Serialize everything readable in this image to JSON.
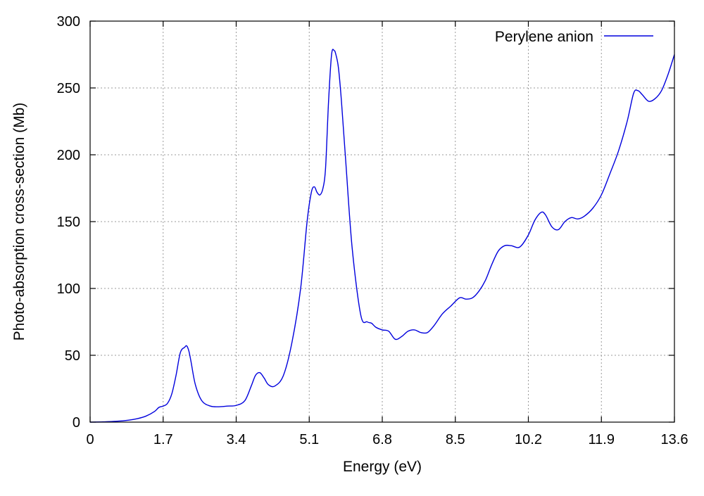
{
  "chart_data": {
    "type": "line",
    "title": "",
    "xlabel": "Energy (eV)",
    "ylabel": "Photo-absorption cross-section (Mb)",
    "xlim": [
      0,
      13.6
    ],
    "ylim": [
      0,
      300
    ],
    "xticks": [
      0,
      1.7,
      3.4,
      5.1,
      6.8,
      8.5,
      10.2,
      11.9,
      13.6
    ],
    "xtick_labels": [
      "0",
      "1.7",
      "3.4",
      "5.1",
      "6.8",
      "8.5",
      "10.2",
      "11.9",
      "13.6"
    ],
    "yticks": [
      0,
      50,
      100,
      150,
      200,
      250,
      300
    ],
    "ytick_labels": [
      "0",
      "50",
      "100",
      "150",
      "200",
      "250",
      "300"
    ],
    "grid": true,
    "legend_position": "top-right",
    "series": [
      {
        "name": "Perylene anion",
        "color": "#0000dd",
        "x": [
          0,
          0.3,
          0.6,
          0.9,
          1.1,
          1.3,
          1.5,
          1.6,
          1.7,
          1.8,
          1.9,
          2.0,
          2.1,
          2.2,
          2.25,
          2.3,
          2.35,
          2.45,
          2.6,
          2.8,
          3.0,
          3.2,
          3.4,
          3.6,
          3.75,
          3.85,
          3.95,
          4.05,
          4.15,
          4.3,
          4.5,
          4.7,
          4.9,
          5.05,
          5.15,
          5.22,
          5.28,
          5.35,
          5.42,
          5.48,
          5.55,
          5.62,
          5.68,
          5.72,
          5.78,
          5.85,
          5.95,
          6.1,
          6.3,
          6.45,
          6.55,
          6.65,
          6.8,
          6.95,
          7.1,
          7.25,
          7.4,
          7.55,
          7.7,
          7.85,
          8.0,
          8.2,
          8.4,
          8.6,
          8.75,
          8.9,
          9.05,
          9.2,
          9.35,
          9.5,
          9.65,
          9.8,
          10.0,
          10.2,
          10.35,
          10.5,
          10.6,
          10.75,
          10.9,
          11.05,
          11.2,
          11.35,
          11.5,
          11.7,
          11.9,
          12.1,
          12.3,
          12.5,
          12.65,
          12.75,
          12.85,
          13.0,
          13.15,
          13.3,
          13.45,
          13.6
        ],
        "y": [
          0,
          0.2,
          0.6,
          1.5,
          2.6,
          4.5,
          8,
          11,
          12,
          14,
          21,
          35,
          52,
          56,
          57,
          53,
          45,
          28,
          16,
          12,
          11.5,
          12,
          12.5,
          16,
          27,
          35,
          37,
          33,
          28,
          27,
          35,
          60,
          100,
          150,
          172,
          176,
          172,
          170,
          175,
          190,
          240,
          275,
          278,
          275,
          265,
          240,
          195,
          130,
          80,
          75,
          74,
          71,
          69,
          68,
          62,
          64,
          68,
          69,
          67,
          67,
          72,
          81,
          87,
          93,
          92,
          93,
          98,
          106,
          118,
          128,
          132,
          132,
          131,
          140,
          151,
          157,
          155,
          146,
          144,
          150,
          153,
          152,
          154,
          160,
          170,
          186,
          203,
          225,
          246,
          248,
          245,
          240,
          242,
          248,
          260,
          275
        ]
      }
    ]
  }
}
